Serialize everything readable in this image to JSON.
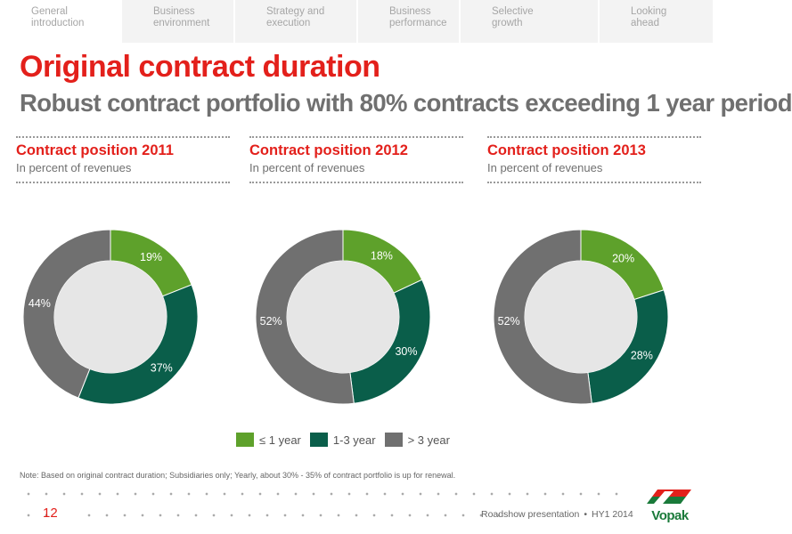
{
  "nav": {
    "tabs": [
      {
        "l1": "General",
        "l2": "introduction"
      },
      {
        "l1": "Business",
        "l2": "environment"
      },
      {
        "l1": "Strategy and",
        "l2": "execution"
      },
      {
        "l1": "Business",
        "l2": "performance"
      },
      {
        "l1": "Selective",
        "l2": "growth"
      },
      {
        "l1": "Looking",
        "l2": "ahead"
      }
    ]
  },
  "title": "Original contract duration",
  "subtitle": "Robust contract portfolio with 80% contracts exceeding 1 year period",
  "colors": {
    "accent": "#e3201b",
    "le_1_year": "#5ea12b",
    "one_to_three_years": "#0a5e4a",
    "gt_3_years": "#707070",
    "donut_hole": "#e6e6e6"
  },
  "chart_data": [
    {
      "type": "pie",
      "title": "Contract position 2011",
      "subtitle": "In percent of revenues",
      "categories": [
        "≤ 1 year",
        "1-3 year",
        "> 3 year"
      ],
      "values": [
        19,
        37,
        44
      ],
      "labels": [
        "19%",
        "37%",
        "44%"
      ]
    },
    {
      "type": "pie",
      "title": "Contract position 2012",
      "subtitle": "In percent of revenues",
      "categories": [
        "≤ 1 year",
        "1-3 year",
        "> 3 year"
      ],
      "values": [
        18,
        30,
        52
      ],
      "labels": [
        "18%",
        "30%",
        "52%"
      ]
    },
    {
      "type": "pie",
      "title": "Contract position 2013",
      "subtitle": "In percent of revenues",
      "categories": [
        "≤ 1 year",
        "1-3 year",
        "> 3 year"
      ],
      "values": [
        20,
        28,
        52
      ],
      "labels": [
        "20%",
        "28%",
        "52%"
      ]
    }
  ],
  "legend": [
    "≤ 1 year",
    "1-3 year",
    "> 3 year"
  ],
  "note": "Note: Based on original contract duration; Subsidiaries only; Yearly, about 30% - 35% of contract portfolio is up for renewal.",
  "footer": {
    "page_number": "12",
    "presentation": "Roadshow presentation",
    "period": "HY1 2014",
    "separator": "•",
    "logo_text": "Vopak"
  }
}
